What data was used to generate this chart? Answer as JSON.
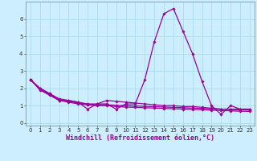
{
  "title": "",
  "xlabel": "Windchill (Refroidissement éolien,°C)",
  "ylabel": "",
  "background_color": "#cceeff",
  "line_color": "#990099",
  "x_ticks": [
    0,
    1,
    2,
    3,
    4,
    5,
    6,
    7,
    8,
    9,
    10,
    11,
    12,
    13,
    14,
    15,
    16,
    17,
    18,
    19,
    20,
    21,
    22,
    23
  ],
  "y_ticks": [
    0,
    1,
    2,
    3,
    4,
    5,
    6
  ],
  "ylim": [
    -0.15,
    7.0
  ],
  "xlim": [
    -0.5,
    23.5
  ],
  "series": [
    {
      "x": [
        0,
        1,
        2,
        3,
        4,
        5,
        6,
        7,
        8,
        9,
        10,
        11,
        12,
        13,
        14,
        15,
        16,
        17,
        18,
        19,
        20,
        21,
        22,
        23
      ],
      "y": [
        2.5,
        2.0,
        1.7,
        1.3,
        1.3,
        1.2,
        0.8,
        1.1,
        1.1,
        0.8,
        1.1,
        1.1,
        2.5,
        4.7,
        6.3,
        6.6,
        5.3,
        4.0,
        2.4,
        1.0,
        0.5,
        1.0,
        0.8,
        0.8
      ]
    },
    {
      "x": [
        0,
        1,
        2,
        3,
        4,
        5,
        6,
        7,
        8,
        9,
        10,
        11,
        12,
        13,
        14,
        15,
        16,
        17,
        18,
        19,
        20,
        21,
        22,
        23
      ],
      "y": [
        2.5,
        2.0,
        1.7,
        1.4,
        1.3,
        1.2,
        1.1,
        1.1,
        1.3,
        1.25,
        1.2,
        1.15,
        1.1,
        1.05,
        1.0,
        1.0,
        0.95,
        0.95,
        0.9,
        0.85,
        0.8,
        0.8,
        0.8,
        0.8
      ]
    },
    {
      "x": [
        0,
        1,
        2,
        3,
        4,
        5,
        6,
        7,
        8,
        9,
        10,
        11,
        12,
        13,
        14,
        15,
        16,
        17,
        18,
        19,
        20,
        21,
        22,
        23
      ],
      "y": [
        2.5,
        1.95,
        1.65,
        1.35,
        1.25,
        1.15,
        1.08,
        1.05,
        1.05,
        1.02,
        1.0,
        0.98,
        0.96,
        0.94,
        0.92,
        0.9,
        0.88,
        0.86,
        0.84,
        0.82,
        0.8,
        0.78,
        0.76,
        0.75
      ]
    },
    {
      "x": [
        0,
        1,
        2,
        3,
        4,
        5,
        6,
        7,
        8,
        9,
        10,
        11,
        12,
        13,
        14,
        15,
        16,
        17,
        18,
        19,
        20,
        21,
        22,
        23
      ],
      "y": [
        2.5,
        1.9,
        1.6,
        1.3,
        1.2,
        1.1,
        1.05,
        1.0,
        1.0,
        0.95,
        0.92,
        0.9,
        0.88,
        0.86,
        0.84,
        0.82,
        0.8,
        0.78,
        0.76,
        0.74,
        0.72,
        0.7,
        0.68,
        0.67
      ]
    }
  ],
  "grid_color": "#aaddee",
  "tick_fontsize": 5.0,
  "label_fontsize": 6.0,
  "marker": "D",
  "marker_size": 1.8,
  "line_width": 0.9
}
